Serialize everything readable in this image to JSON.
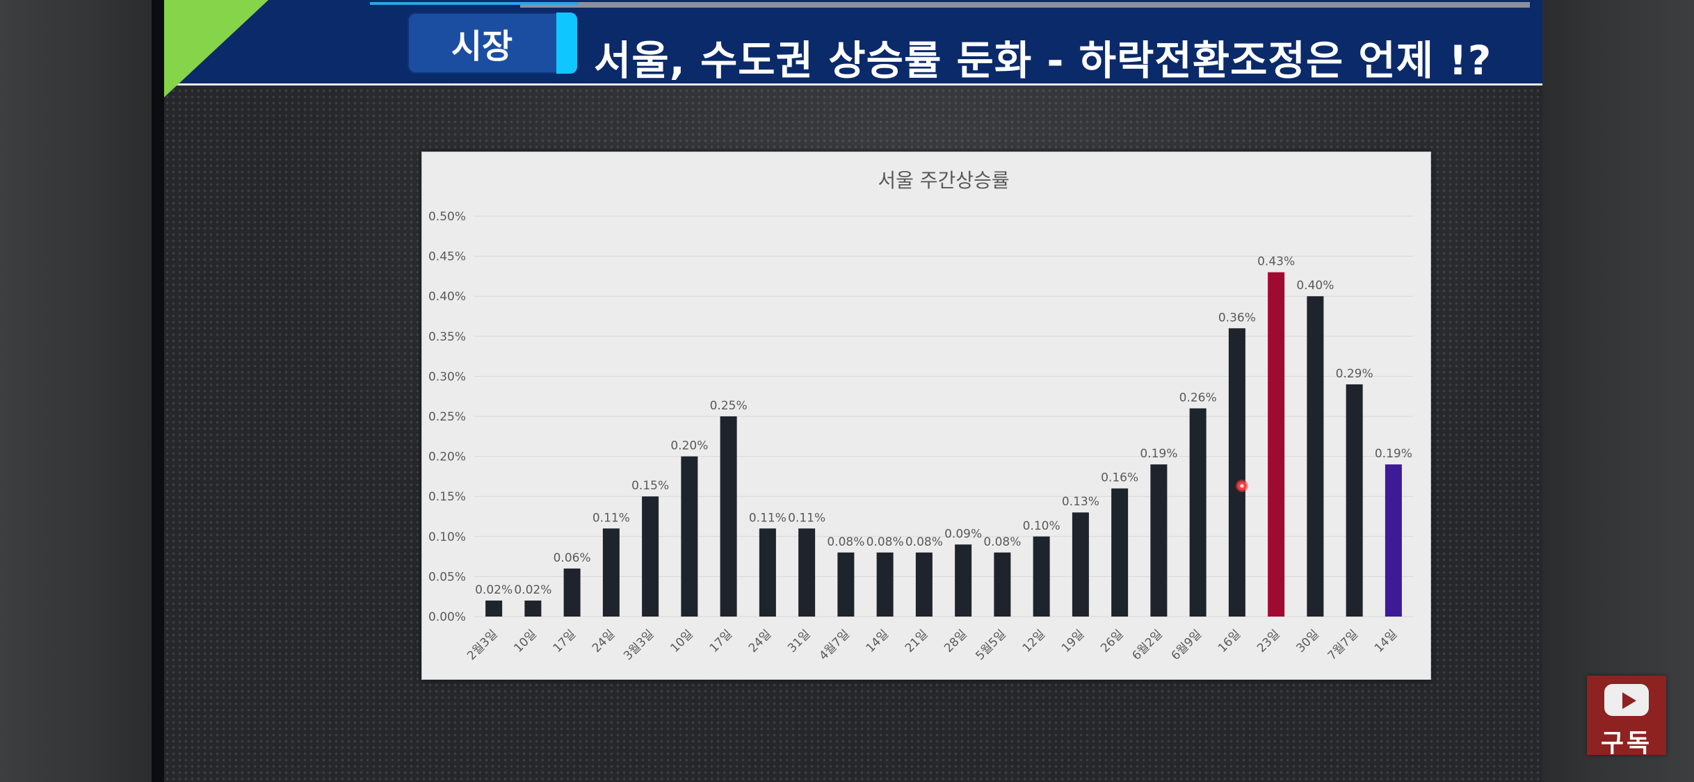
{
  "header": {
    "tag": "시장",
    "title": "서울, 수도권 상승률 둔화   - 하락전환조정은 언제 !?"
  },
  "subscribe": {
    "label": "구독"
  },
  "colors": {
    "bar_default": "#1f232b",
    "bar_highlight_peak": "#a10a30",
    "bar_highlight_latest": "#3d1a96",
    "title_bg": "#0b2a6a",
    "accent_green": "#86d449",
    "tag_accent": "#10c6ff",
    "subscribe_bg": "#8d2221"
  },
  "chart_data": {
    "type": "bar",
    "title": "서울 주간상승률",
    "xlabel": "",
    "ylabel": "",
    "ylim": [
      0,
      0.5
    ],
    "grid": true,
    "yticks": [
      "0.00%",
      "0.05%",
      "0.10%",
      "0.15%",
      "0.20%",
      "0.25%",
      "0.30%",
      "0.35%",
      "0.40%",
      "0.45%",
      "0.50%"
    ],
    "categories": [
      "2월3일",
      "10일",
      "17일",
      "24일",
      "3월3일",
      "10일",
      "17일",
      "24일",
      "31일",
      "4월7일",
      "14일",
      "21일",
      "28일",
      "5월5일",
      "12일",
      "19일",
      "26일",
      "6월2일",
      "6월9일",
      "16일",
      "23일",
      "30일",
      "7월7일",
      "14일"
    ],
    "values": [
      0.02,
      0.02,
      0.06,
      0.11,
      0.15,
      0.2,
      0.25,
      0.11,
      0.11,
      0.08,
      0.08,
      0.08,
      0.09,
      0.08,
      0.1,
      0.13,
      0.16,
      0.19,
      0.26,
      0.36,
      0.43,
      0.4,
      0.29,
      0.19
    ],
    "labels": [
      "0.02%",
      "0.02%",
      "0.06%",
      "0.11%",
      "0.15%",
      "0.20%",
      "0.25%",
      "0.11%",
      "0.11%",
      "0.08%",
      "0.08%",
      "0.08%",
      "0.09%",
      "0.08%",
      "0.10%",
      "0.13%",
      "0.16%",
      "0.19%",
      "0.26%",
      "0.36%",
      "0.43%",
      "0.40%",
      "0.29%",
      "0.19%"
    ],
    "highlight": {
      "peak_index": 20,
      "latest_index": 23
    }
  }
}
